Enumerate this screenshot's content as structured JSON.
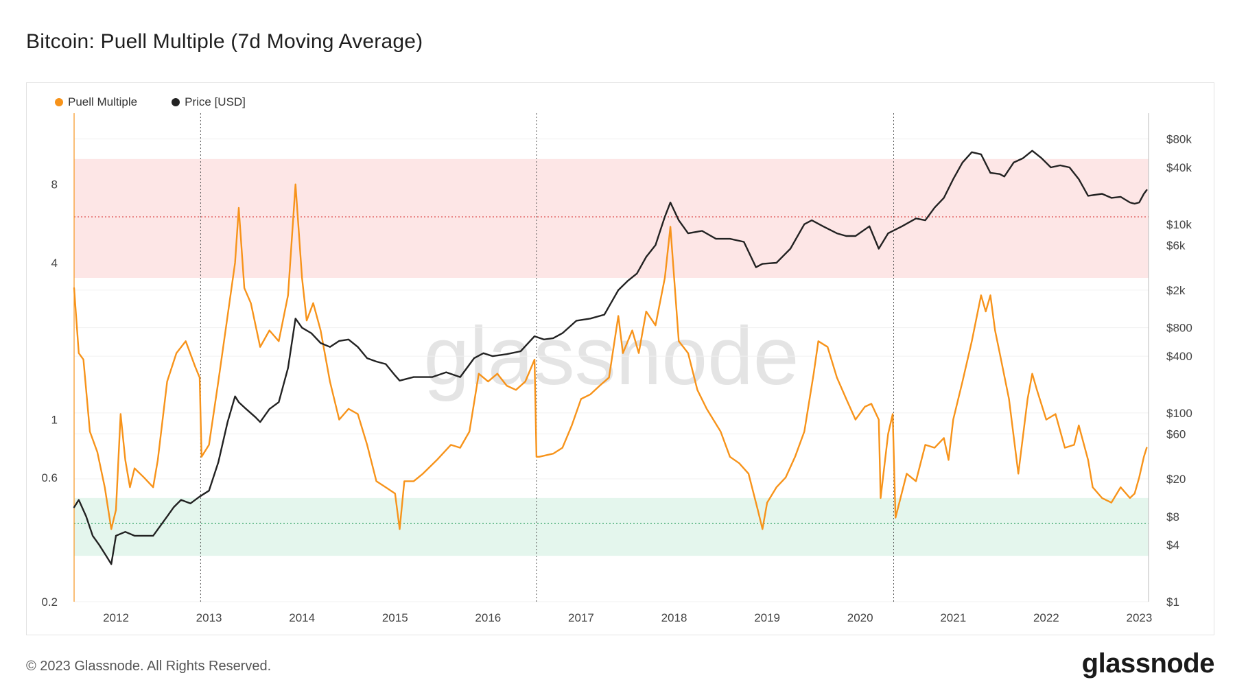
{
  "header": {
    "title": "Bitcoin: Puell Multiple (7d Moving Average)"
  },
  "footer": {
    "copyright": "© 2023 Glassnode. All Rights Reserved.",
    "logo_text": "glassnode"
  },
  "colors": {
    "puell": "#f7931a",
    "price": "#222222",
    "red_band": "#fde5e5",
    "green_band": "#e3f6ec",
    "red_line": "#e05555",
    "green_line": "#3aa86b"
  },
  "chart_data": {
    "type": "line",
    "title": "Bitcoin: Puell Multiple (7d Moving Average)",
    "watermark": "glassnode",
    "legend": [
      "Puell Multiple",
      "Price [USD]"
    ],
    "x_range": [
      2011.55,
      2023.1
    ],
    "x_ticks": [
      2012,
      2013,
      2014,
      2015,
      2016,
      2017,
      2018,
      2019,
      2020,
      2021,
      2022,
      2023
    ],
    "left_axis": {
      "scale": "log",
      "range": [
        0.2,
        15
      ],
      "ticks": [
        0.2,
        0.6,
        1,
        4,
        8
      ],
      "tick_labels": [
        "0.2",
        "0.6",
        "1",
        "4",
        "8"
      ]
    },
    "right_axis": {
      "scale": "log",
      "range": [
        1,
        150000
      ],
      "ticks": [
        1,
        4,
        8,
        20,
        60,
        100,
        400,
        800,
        2000,
        6000,
        10000,
        40000,
        80000
      ],
      "tick_labels": [
        "$1",
        "$4",
        "$8",
        "$20",
        "$60",
        "$100",
        "$400",
        "$800",
        "$2k",
        "$6k",
        "$10k",
        "$40k",
        "$80k"
      ]
    },
    "bands": {
      "red": {
        "from": 3.5,
        "to": 10,
        "threshold": 6
      },
      "green": {
        "from": 0.3,
        "to": 0.5,
        "threshold": 0.4
      }
    },
    "halvings": [
      2012.91,
      2016.52,
      2020.36
    ],
    "series": [
      {
        "name": "Puell Multiple",
        "axis": "left",
        "x": [
          2011.55,
          2011.6,
          2011.65,
          2011.72,
          2011.8,
          2011.88,
          2011.95,
          2012.0,
          2012.05,
          2012.1,
          2012.15,
          2012.2,
          2012.3,
          2012.4,
          2012.45,
          2012.55,
          2012.65,
          2012.75,
          2012.85,
          2012.9,
          2012.92,
          2013.0,
          2013.1,
          2013.2,
          2013.28,
          2013.32,
          2013.38,
          2013.45,
          2013.55,
          2013.65,
          2013.75,
          2013.85,
          2013.93,
          2014.0,
          2014.05,
          2014.12,
          2014.2,
          2014.3,
          2014.4,
          2014.5,
          2014.6,
          2014.7,
          2014.8,
          2014.9,
          2015.0,
          2015.05,
          2015.1,
          2015.2,
          2015.3,
          2015.45,
          2015.6,
          2015.7,
          2015.8,
          2015.9,
          2016.0,
          2016.1,
          2016.2,
          2016.3,
          2016.4,
          2016.5,
          2016.52,
          2016.55,
          2016.7,
          2016.8,
          2016.9,
          2017.0,
          2017.1,
          2017.2,
          2017.3,
          2017.4,
          2017.45,
          2017.55,
          2017.62,
          2017.7,
          2017.8,
          2017.9,
          2017.96,
          2018.05,
          2018.15,
          2018.25,
          2018.35,
          2018.5,
          2018.6,
          2018.7,
          2018.8,
          2018.9,
          2018.95,
          2019.0,
          2019.1,
          2019.2,
          2019.3,
          2019.4,
          2019.5,
          2019.55,
          2019.65,
          2019.75,
          2019.85,
          2019.95,
          2020.05,
          2020.12,
          2020.2,
          2020.22,
          2020.3,
          2020.35,
          2020.38,
          2020.5,
          2020.6,
          2020.7,
          2020.8,
          2020.9,
          2020.95,
          2021.0,
          2021.1,
          2021.2,
          2021.3,
          2021.35,
          2021.4,
          2021.45,
          2021.5,
          2021.6,
          2021.7,
          2021.8,
          2021.85,
          2021.9,
          2022.0,
          2022.1,
          2022.2,
          2022.3,
          2022.35,
          2022.45,
          2022.5,
          2022.6,
          2022.7,
          2022.8,
          2022.9,
          2022.95,
          2023.0,
          2023.05,
          2023.08
        ],
        "values": [
          3.2,
          1.8,
          1.7,
          0.9,
          0.75,
          0.55,
          0.38,
          0.45,
          1.05,
          0.7,
          0.55,
          0.65,
          0.6,
          0.55,
          0.7,
          1.4,
          1.8,
          2.0,
          1.6,
          1.45,
          0.72,
          0.8,
          1.4,
          2.5,
          4.0,
          6.5,
          3.2,
          2.8,
          1.9,
          2.2,
          2.0,
          3.0,
          8.0,
          3.5,
          2.4,
          2.8,
          2.2,
          1.4,
          1.0,
          1.1,
          1.05,
          0.8,
          0.58,
          0.55,
          0.52,
          0.38,
          0.58,
          0.58,
          0.62,
          0.7,
          0.8,
          0.78,
          0.9,
          1.5,
          1.4,
          1.5,
          1.35,
          1.3,
          1.4,
          1.7,
          0.72,
          0.72,
          0.74,
          0.78,
          0.95,
          1.2,
          1.25,
          1.35,
          1.45,
          2.5,
          1.8,
          2.2,
          1.8,
          2.6,
          2.3,
          3.5,
          5.5,
          2.0,
          1.8,
          1.3,
          1.1,
          0.9,
          0.72,
          0.68,
          0.62,
          0.45,
          0.38,
          0.48,
          0.55,
          0.6,
          0.72,
          0.9,
          1.5,
          2.0,
          1.9,
          1.45,
          1.2,
          1.0,
          1.12,
          1.15,
          1.0,
          0.5,
          0.88,
          1.05,
          0.42,
          0.62,
          0.58,
          0.8,
          0.78,
          0.85,
          0.7,
          1.0,
          1.4,
          2.0,
          3.0,
          2.6,
          3.0,
          2.2,
          1.8,
          1.2,
          0.62,
          1.2,
          1.5,
          1.3,
          1.0,
          1.05,
          0.78,
          0.8,
          0.95,
          0.7,
          0.55,
          0.5,
          0.48,
          0.55,
          0.5,
          0.52,
          0.6,
          0.72,
          0.78
        ]
      },
      {
        "name": "Price [USD]",
        "axis": "right",
        "x": [
          2011.55,
          2011.6,
          2011.68,
          2011.75,
          2011.82,
          2011.9,
          2011.95,
          2012.0,
          2012.1,
          2012.2,
          2012.4,
          2012.55,
          2012.62,
          2012.7,
          2012.8,
          2012.9,
          2013.0,
          2013.1,
          2013.2,
          2013.28,
          2013.32,
          2013.4,
          2013.5,
          2013.55,
          2013.65,
          2013.75,
          2013.85,
          2013.93,
          2014.0,
          2014.1,
          2014.2,
          2014.3,
          2014.4,
          2014.5,
          2014.6,
          2014.7,
          2014.8,
          2014.9,
          2015.0,
          2015.05,
          2015.2,
          2015.4,
          2015.55,
          2015.7,
          2015.85,
          2015.95,
          2016.05,
          2016.2,
          2016.35,
          2016.5,
          2016.6,
          2016.7,
          2016.8,
          2016.95,
          2017.1,
          2017.25,
          2017.4,
          2017.5,
          2017.6,
          2017.7,
          2017.8,
          2017.9,
          2017.96,
          2018.05,
          2018.15,
          2018.3,
          2018.45,
          2018.6,
          2018.75,
          2018.88,
          2018.95,
          2019.1,
          2019.25,
          2019.4,
          2019.48,
          2019.6,
          2019.75,
          2019.85,
          2019.95,
          2020.1,
          2020.2,
          2020.3,
          2020.45,
          2020.6,
          2020.7,
          2020.8,
          2020.9,
          2021.0,
          2021.1,
          2021.2,
          2021.3,
          2021.4,
          2021.5,
          2021.55,
          2021.65,
          2021.75,
          2021.85,
          2021.95,
          2022.05,
          2022.15,
          2022.25,
          2022.35,
          2022.45,
          2022.6,
          2022.7,
          2022.8,
          2022.9,
          2022.95,
          2023.0,
          2023.05,
          2023.08
        ],
        "values": [
          10,
          12,
          8,
          5,
          4,
          3,
          2.5,
          5,
          5.5,
          5,
          5,
          8,
          10,
          12,
          11,
          13,
          15,
          30,
          80,
          150,
          130,
          110,
          90,
          80,
          110,
          130,
          300,
          1000,
          800,
          700,
          550,
          500,
          580,
          600,
          500,
          380,
          350,
          330,
          250,
          220,
          240,
          240,
          270,
          240,
          380,
          430,
          400,
          420,
          450,
          650,
          600,
          620,
          700,
          950,
          1000,
          1100,
          2000,
          2500,
          3000,
          4500,
          6000,
          12000,
          17000,
          11000,
          8000,
          8500,
          7000,
          7000,
          6500,
          3500,
          3800,
          3900,
          5500,
          10000,
          11000,
          9500,
          8000,
          7500,
          7500,
          9500,
          5500,
          8000,
          9500,
          11500,
          11000,
          15000,
          19000,
          30000,
          45000,
          58000,
          55000,
          35000,
          34000,
          32000,
          45000,
          50000,
          60000,
          50000,
          40000,
          42000,
          40000,
          30000,
          20000,
          21000,
          19000,
          19500,
          17000,
          16500,
          17000,
          21000,
          23000
        ]
      }
    ]
  }
}
